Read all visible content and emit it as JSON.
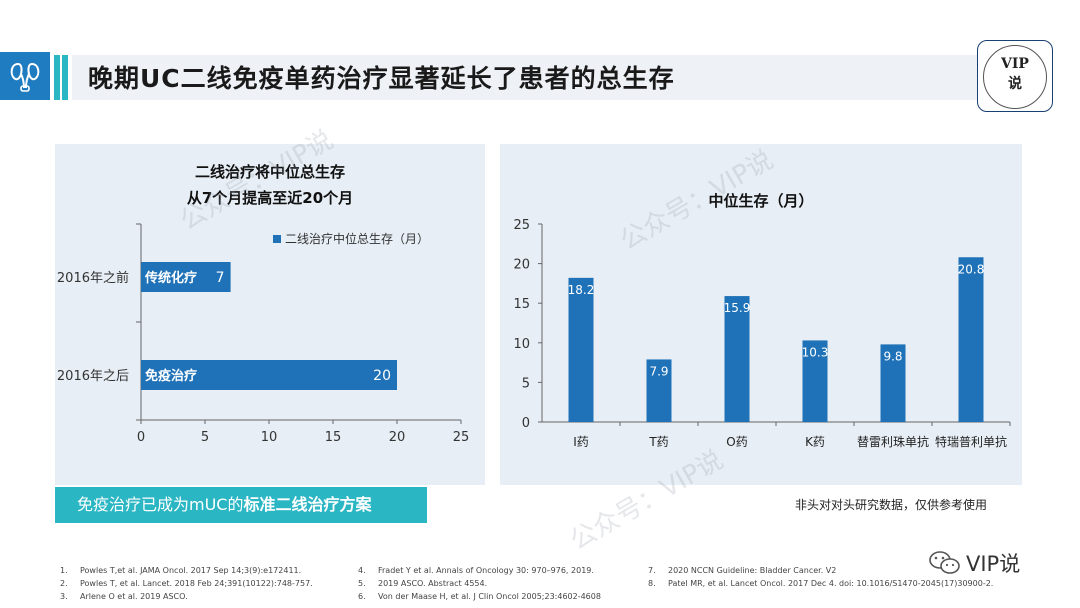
{
  "header": {
    "title": "晚期UC二线免疫单药治疗显著延长了患者的总生存",
    "vip_badge_line1": "VIP",
    "vip_badge_line2": "说"
  },
  "left_chart": {
    "title_line1": "二线治疗将中位总生存",
    "title_line2": "从7个月提高至近20个月"
  },
  "right_chart": {
    "title": "中位生存（月）"
  },
  "chart_data": [
    {
      "type": "bar",
      "orientation": "horizontal",
      "title": "二线治疗将中位总生存 从7个月提高至近20个月",
      "legend": "二线治疗中位总生存（月）",
      "legend_position": "top",
      "categories": [
        "2016年之前",
        "2016年之后"
      ],
      "bar_labels": [
        "传统化疗",
        "免疫治疗"
      ],
      "values": [
        7,
        20
      ],
      "xlim": [
        0,
        25
      ],
      "xticks": [
        0,
        5,
        10,
        15,
        20,
        25
      ],
      "grid": false,
      "color": "#1f72b8"
    },
    {
      "type": "bar",
      "orientation": "vertical",
      "title": "中位生存（月）",
      "categories": [
        "I药",
        "T药",
        "O药",
        "K药",
        "替雷利珠单抗",
        "特瑞普利单抗"
      ],
      "values": [
        18.2,
        7.9,
        15.9,
        10.3,
        9.8,
        20.8
      ],
      "value_labels": [
        "18.2",
        "7.9",
        "15.9",
        "10.3",
        "9.8",
        "20.8"
      ],
      "ylim": [
        0,
        25
      ],
      "yticks": [
        0,
        5,
        10,
        15,
        20,
        25
      ],
      "grid": false,
      "color": "#1f72b8"
    }
  ],
  "highlight": {
    "prefix": "免疫治疗已成为mUC的",
    "bold": "标准二线治疗方案"
  },
  "note": "非头对对头研究数据，仅供参考使用",
  "references": [
    [
      "1.",
      "Powles T,et al. JAMA Oncol. 2017 Sep 14;3(9):e172411."
    ],
    [
      "2.",
      "Powles T, et al. Lancet. 2018 Feb 24;391(10122):748-757."
    ],
    [
      "3.",
      "Arlene O et al. 2019 ASCO."
    ],
    [
      "4.",
      "Fradet Y et al. Annals of Oncology 30: 970–976, 2019."
    ],
    [
      "5.",
      "2019 ASCO. Abstract 4554."
    ],
    [
      "6.",
      "Von der Maase H, et al. J Clin Oncol 2005;23:4602-4608"
    ],
    [
      "7.",
      "2020 NCCN Guideline: Bladder Cancer. V2"
    ],
    [
      "8.",
      "Patel MR, et al. Lancet Oncol. 2017 Dec 4. doi: 10.1016/S1470-2045(17)30900-2."
    ]
  ],
  "footer": {
    "wechat_label": "VIP说"
  },
  "watermark": "公众号：VIP说",
  "colors": {
    "accent": "#2bb6c4",
    "bar": "#1f72b8",
    "panel": "#e7eef5",
    "logo": "#1f7cc1"
  },
  "icons": [
    "kidney-logo-icon",
    "wechat-icon"
  ]
}
